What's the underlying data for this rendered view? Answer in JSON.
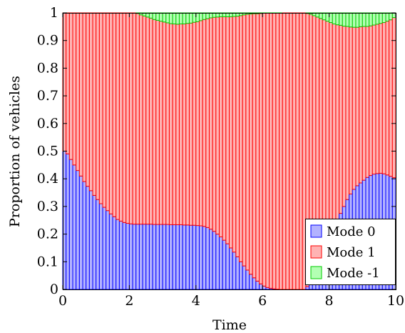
{
  "chart_data": {
    "type": "bar",
    "stacked": true,
    "title": "",
    "xlabel": "Time",
    "ylabel": "Proportion of vehicles",
    "xlim": [
      0,
      10
    ],
    "ylim": [
      0,
      1
    ],
    "xticks": [
      "0",
      "2",
      "4",
      "6",
      "8",
      "10"
    ],
    "yticks": [
      "0",
      "0.1",
      "0.2",
      "0.3",
      "0.4",
      "0.5",
      "0.6",
      "0.7",
      "0.8",
      "0.9",
      "1"
    ],
    "grid": false,
    "legend_position": "bottom-right",
    "bar_width": 0.1,
    "x": [
      0.0,
      0.1,
      0.2,
      0.3,
      0.4,
      0.5,
      0.6,
      0.7,
      0.8,
      0.9,
      1.0,
      1.1,
      1.2,
      1.3,
      1.4,
      1.5,
      1.6,
      1.7,
      1.8,
      1.9,
      2.0,
      2.1,
      2.2,
      2.3,
      2.4,
      2.5,
      2.6,
      2.7,
      2.8,
      2.9,
      3.0,
      3.1,
      3.2,
      3.3,
      3.4,
      3.5,
      3.6,
      3.7,
      3.8,
      3.9,
      4.0,
      4.1,
      4.2,
      4.3,
      4.4,
      4.5,
      4.6,
      4.7,
      4.8,
      4.9,
      5.0,
      5.1,
      5.2,
      5.3,
      5.4,
      5.5,
      5.6,
      5.7,
      5.8,
      5.9,
      6.0,
      6.1,
      6.2,
      6.3,
      6.4,
      6.5,
      6.6,
      6.7,
      6.8,
      6.9,
      7.0,
      7.1,
      7.2,
      7.3,
      7.4,
      7.5,
      7.6,
      7.7,
      7.8,
      7.9,
      8.0,
      8.1,
      8.2,
      8.3,
      8.4,
      8.5,
      8.6,
      8.7,
      8.8,
      8.9,
      9.0,
      9.1,
      9.2,
      9.3,
      9.4,
      9.5,
      9.6,
      9.7,
      9.8,
      9.9
    ],
    "series": [
      {
        "name": "Mode 0",
        "color": "#b3b3ff",
        "edge": "#0000ff",
        "values": [
          0.5,
          0.49,
          0.47,
          0.45,
          0.43,
          0.41,
          0.39,
          0.373,
          0.357,
          0.34,
          0.325,
          0.31,
          0.297,
          0.285,
          0.273,
          0.263,
          0.253,
          0.247,
          0.242,
          0.239,
          0.237,
          0.236,
          0.236,
          0.236,
          0.236,
          0.236,
          0.236,
          0.235,
          0.235,
          0.235,
          0.235,
          0.235,
          0.234,
          0.234,
          0.234,
          0.234,
          0.233,
          0.233,
          0.232,
          0.232,
          0.231,
          0.23,
          0.228,
          0.224,
          0.218,
          0.21,
          0.2,
          0.19,
          0.178,
          0.165,
          0.15,
          0.135,
          0.118,
          0.1,
          0.085,
          0.07,
          0.055,
          0.042,
          0.03,
          0.02,
          0.012,
          0.007,
          0.004,
          0.002,
          0.001,
          0.0,
          0.0,
          0.0,
          0.0,
          0.0,
          0.0,
          0.0,
          0.0,
          0.01,
          0.025,
          0.045,
          0.07,
          0.1,
          0.13,
          0.16,
          0.19,
          0.215,
          0.245,
          0.275,
          0.3,
          0.325,
          0.345,
          0.362,
          0.375,
          0.385,
          0.395,
          0.405,
          0.412,
          0.417,
          0.419,
          0.42,
          0.418,
          0.414,
          0.409,
          0.404
        ]
      },
      {
        "name": "Mode 1",
        "color": "#ffb3b3",
        "edge": "#ff0000",
        "values": [
          0.5,
          0.51,
          0.53,
          0.55,
          0.57,
          0.59,
          0.61,
          0.627,
          0.643,
          0.66,
          0.675,
          0.69,
          0.703,
          0.715,
          0.727,
          0.737,
          0.747,
          0.753,
          0.758,
          0.761,
          0.763,
          0.764,
          0.762,
          0.757,
          0.753,
          0.749,
          0.745,
          0.741,
          0.738,
          0.735,
          0.732,
          0.729,
          0.727,
          0.726,
          0.725,
          0.726,
          0.727,
          0.729,
          0.731,
          0.734,
          0.737,
          0.742,
          0.748,
          0.755,
          0.764,
          0.774,
          0.785,
          0.796,
          0.808,
          0.821,
          0.836,
          0.852,
          0.87,
          0.89,
          0.908,
          0.925,
          0.941,
          0.955,
          0.967,
          0.978,
          0.987,
          0.992,
          0.995,
          0.997,
          0.998,
          0.999,
          1.0,
          1.0,
          1.0,
          1.0,
          1.0,
          1.0,
          1.0,
          0.988,
          0.97,
          0.945,
          0.915,
          0.88,
          0.845,
          0.81,
          0.775,
          0.745,
          0.712,
          0.68,
          0.652,
          0.626,
          0.604,
          0.586,
          0.573,
          0.565,
          0.556,
          0.546,
          0.541,
          0.539,
          0.54,
          0.542,
          0.547,
          0.556,
          0.566,
          0.579
        ]
      },
      {
        "name": "Mode -1",
        "color": "#b3ffb3",
        "edge": "#00cc00",
        "values": [
          0.0,
          0.0,
          0.0,
          0.0,
          0.0,
          0.0,
          0.0,
          0.0,
          0.0,
          0.0,
          0.0,
          0.0,
          0.0,
          0.0,
          0.0,
          0.0,
          0.0,
          0.0,
          0.0,
          0.0,
          0.0,
          0.0,
          0.002,
          0.007,
          0.011,
          0.015,
          0.019,
          0.024,
          0.027,
          0.03,
          0.033,
          0.036,
          0.039,
          0.04,
          0.041,
          0.04,
          0.04,
          0.038,
          0.037,
          0.034,
          0.032,
          0.028,
          0.024,
          0.021,
          0.018,
          0.016,
          0.015,
          0.014,
          0.014,
          0.014,
          0.014,
          0.013,
          0.012,
          0.01,
          0.007,
          0.005,
          0.004,
          0.003,
          0.003,
          0.002,
          0.001,
          0.001,
          0.001,
          0.001,
          0.001,
          0.001,
          0.0,
          0.0,
          0.0,
          0.0,
          0.0,
          0.0,
          0.0,
          0.002,
          0.005,
          0.01,
          0.015,
          0.02,
          0.025,
          0.03,
          0.035,
          0.04,
          0.043,
          0.045,
          0.048,
          0.049,
          0.051,
          0.052,
          0.052,
          0.05,
          0.049,
          0.049,
          0.047,
          0.044,
          0.041,
          0.038,
          0.035,
          0.03,
          0.025,
          0.017
        ]
      }
    ]
  }
}
